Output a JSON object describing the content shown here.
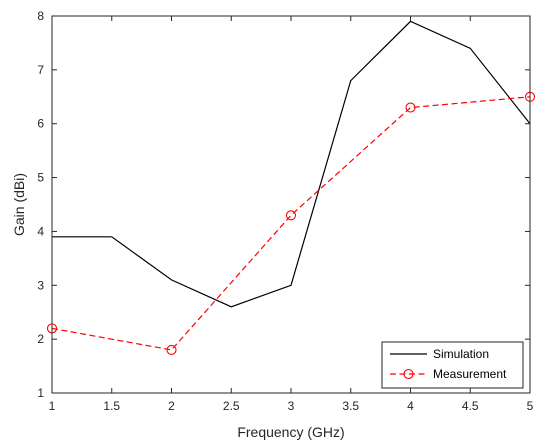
{
  "chart_data": {
    "type": "line",
    "xlabel": "Frequency (GHz)",
    "ylabel": "Gain (dBi)",
    "xlim": [
      1,
      5
    ],
    "ylim": [
      1,
      8
    ],
    "xticks": [
      1,
      1.5,
      2,
      2.5,
      3,
      3.5,
      4,
      4.5,
      5
    ],
    "yticks": [
      1,
      2,
      3,
      4,
      5,
      6,
      7,
      8
    ],
    "grid": false,
    "legend_position": "bottom-right",
    "series": [
      {
        "name": "Simulation",
        "style": "solid",
        "marker": "none",
        "color": "#000000",
        "x": [
          1,
          1.5,
          2,
          2.5,
          3,
          3.5,
          4,
          4.5,
          5
        ],
        "y": [
          3.9,
          3.9,
          3.1,
          2.6,
          3.0,
          6.8,
          7.9,
          7.4,
          6.0
        ]
      },
      {
        "name": "Measurement",
        "style": "dashed",
        "marker": "circle",
        "color": "#ff0000",
        "x": [
          1,
          2,
          3,
          4,
          5
        ],
        "y": [
          2.2,
          1.8,
          4.3,
          6.3,
          6.5
        ]
      }
    ]
  }
}
